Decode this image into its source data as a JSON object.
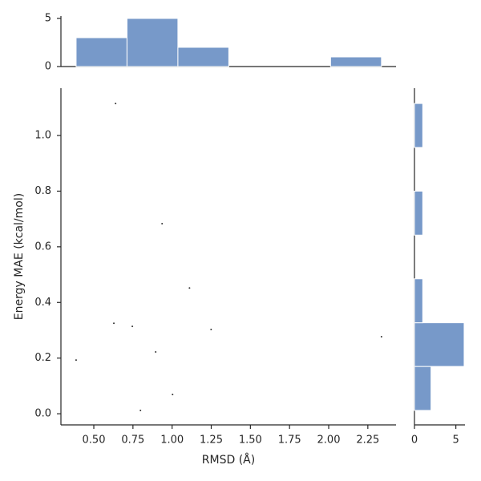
{
  "chart_data": [
    {
      "type": "scatter",
      "xlabel": "RMSD (Å)",
      "ylabel": "Energy MAE (kcal/mol)",
      "color": "#333333",
      "x": [
        0.639,
        0.936,
        1.111,
        0.628,
        0.746,
        1.249,
        2.337,
        0.895,
        0.387,
        1.003,
        0.798
      ],
      "values": [
        1.115,
        0.683,
        0.452,
        0.325,
        0.314,
        0.303,
        0.277,
        0.222,
        0.193,
        0.069,
        0.012
      ],
      "xlim": [
        0.29,
        2.43
      ],
      "ylim": [
        -0.04,
        1.17
      ],
      "xticks": [
        {
          "value": 0.5,
          "label": "0.50"
        },
        {
          "value": 0.75,
          "label": "0.75"
        },
        {
          "value": 1.0,
          "label": "1.00"
        },
        {
          "value": 1.25,
          "label": "1.25"
        },
        {
          "value": 1.5,
          "label": "1.50"
        },
        {
          "value": 1.75,
          "label": "1.75"
        },
        {
          "value": 2.0,
          "label": "2.00"
        },
        {
          "value": 2.25,
          "label": "2.25"
        }
      ],
      "yticks": [
        {
          "value": 0,
          "label": "0.0"
        },
        {
          "value": 0.2,
          "label": "0.2"
        },
        {
          "value": 0.4,
          "label": "0.4"
        },
        {
          "value": 0.6,
          "label": "0.6"
        },
        {
          "value": 0.8,
          "label": "0.8"
        },
        {
          "value": 1.0,
          "label": "1.0"
        }
      ]
    },
    {
      "type": "histogram",
      "orientation": "vertical",
      "color": "#7799c9",
      "bins": [
        0.387,
        0.712,
        1.037,
        1.362,
        1.687,
        2.012,
        2.337
      ],
      "values": [
        3,
        5,
        2,
        0,
        0,
        1
      ],
      "xlim": [
        0.29,
        2.43
      ],
      "ylim": [
        0,
        5.25
      ],
      "yticks": [
        0,
        5
      ]
    },
    {
      "type": "histogram",
      "orientation": "horizontal",
      "color": "#7799c9",
      "bins": [
        0.012,
        0.17,
        0.327,
        0.485,
        0.642,
        0.8,
        0.957,
        1.115
      ],
      "values": [
        2,
        6,
        1,
        0,
        1,
        0,
        1
      ],
      "ylim": [
        -0.04,
        1.17
      ],
      "xlim": [
        0,
        6.1
      ],
      "xticks": [
        0,
        5
      ]
    }
  ]
}
